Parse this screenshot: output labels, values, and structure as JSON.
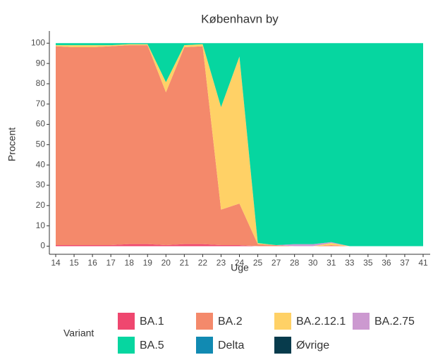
{
  "chart_data": {
    "type": "stacked_area",
    "title": "København by",
    "x_label": "Uge",
    "y_label": "Procent",
    "categories": [
      "14",
      "15",
      "16",
      "17",
      "18",
      "19",
      "20",
      "21",
      "22",
      "23",
      "24",
      "25",
      "27",
      "28",
      "30",
      "31",
      "33",
      "35",
      "36",
      "37",
      "41"
    ],
    "ylim": [
      -4,
      106
    ],
    "yticks": [
      0,
      10,
      20,
      30,
      40,
      50,
      60,
      70,
      80,
      90,
      100
    ],
    "grid": false,
    "legend_title": "Variant",
    "legend_position": "bottom",
    "series": [
      {
        "name": "BA.1",
        "color": "#ef476f",
        "values": [
          0.5,
          0.5,
          0.5,
          0.5,
          1,
          1,
          0.5,
          1,
          1,
          0.5,
          0.5,
          0,
          0,
          0,
          0,
          0,
          0,
          0,
          0,
          0,
          0
        ]
      },
      {
        "name": "BA.2",
        "color": "#f4896b",
        "values": [
          98,
          97.5,
          97.5,
          98,
          98,
          98,
          75.3,
          97,
          97.5,
          17.5,
          20.5,
          1,
          0.5,
          0,
          0,
          0.5,
          0,
          0,
          0,
          0,
          0
        ]
      },
      {
        "name": "BA.2.12.1",
        "color": "#ffd166",
        "values": [
          0.5,
          1,
          1,
          0.5,
          0.5,
          0.5,
          5,
          1,
          1,
          50.5,
          72.4,
          0.5,
          0,
          0,
          0,
          1,
          0,
          0,
          0,
          0,
          0
        ]
      },
      {
        "name": "BA.2.75",
        "color": "#cc99d0",
        "values": [
          0,
          0,
          0,
          0,
          0,
          0,
          0,
          0,
          0,
          0,
          0,
          0,
          0,
          1,
          1,
          0.5,
          0,
          0,
          0,
          0,
          0
        ]
      },
      {
        "name": "BA.5",
        "color": "#06d6a0",
        "values": [
          1,
          1,
          1,
          1,
          0.5,
          0.5,
          19.2,
          1,
          0.5,
          31.5,
          6.6,
          98.5,
          99.5,
          99,
          99,
          98,
          100,
          100,
          100,
          100,
          100
        ]
      },
      {
        "name": "Delta",
        "color": "#118ab2",
        "values": [
          0,
          0,
          0,
          0,
          0,
          0,
          0,
          0,
          0,
          0,
          0,
          0,
          0,
          0,
          0,
          0,
          0,
          0,
          0,
          0,
          0
        ]
      },
      {
        "name": "Øvrige",
        "color": "#073b4c",
        "values": [
          0,
          0,
          0,
          0,
          0,
          0,
          0,
          0,
          0,
          0,
          0,
          0,
          0,
          0,
          0,
          0,
          0,
          0,
          0,
          0,
          0
        ]
      }
    ]
  }
}
